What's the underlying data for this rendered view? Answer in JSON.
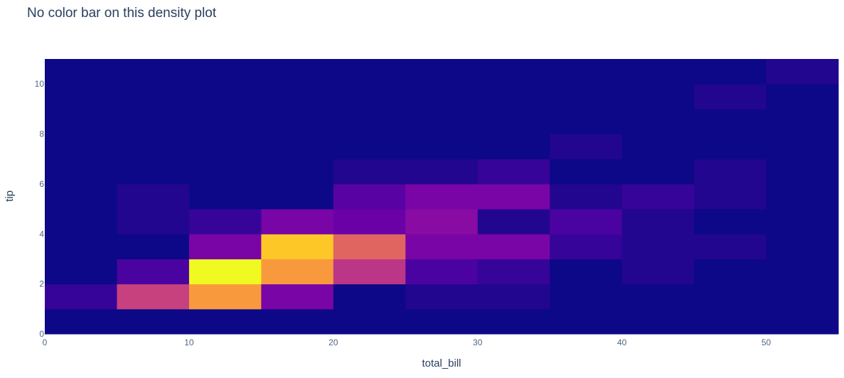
{
  "chart_data": {
    "type": "heatmap",
    "title": "No color bar on this density plot",
    "xlabel": "total_bill",
    "ylabel": "tip",
    "x_bin_size": 5,
    "y_bin_size": 1,
    "xlim": [
      0,
      55
    ],
    "ylim": [
      0,
      11
    ],
    "x_ticks": [
      0,
      10,
      20,
      30,
      40,
      50
    ],
    "y_ticks": [
      0,
      2,
      4,
      6,
      8,
      10
    ],
    "colorscale": [
      "#0d0887",
      "#46039f",
      "#7201a8",
      "#9c179e",
      "#bd3786",
      "#d8576b",
      "#ed7953",
      "#fb9f3a",
      "#fdca26",
      "#f0f921"
    ],
    "colorbar": false,
    "z_max": 25,
    "z_comment_rows_are_tip_bins_from_0_up_cols_are_bill_bins_from_0_up": "",
    "z": [
      [
        0,
        0,
        0,
        0,
        0,
        0,
        0,
        0,
        0,
        0,
        0
      ],
      [
        2,
        12,
        19,
        6,
        0,
        1,
        1,
        0,
        0,
        0,
        0
      ],
      [
        0,
        3,
        25,
        19,
        11,
        3,
        2,
        0,
        1,
        0,
        0
      ],
      [
        0,
        0,
        6,
        22,
        15,
        6,
        6,
        2,
        1,
        1,
        0
      ],
      [
        0,
        1,
        2,
        6,
        5,
        7,
        1,
        3,
        1,
        0,
        0
      ],
      [
        0,
        1,
        0,
        0,
        4,
        6,
        6,
        1,
        2,
        1,
        0
      ],
      [
        0,
        0,
        0,
        0,
        1,
        1,
        2,
        0,
        0,
        1,
        0
      ],
      [
        0,
        0,
        0,
        0,
        0,
        0,
        0,
        1,
        0,
        0,
        0
      ],
      [
        0,
        0,
        0,
        0,
        0,
        0,
        0,
        0,
        0,
        0,
        0
      ],
      [
        0,
        0,
        0,
        0,
        0,
        0,
        0,
        0,
        0,
        1,
        0
      ],
      [
        0,
        0,
        0,
        0,
        0,
        0,
        0,
        0,
        0,
        0,
        1
      ]
    ]
  }
}
